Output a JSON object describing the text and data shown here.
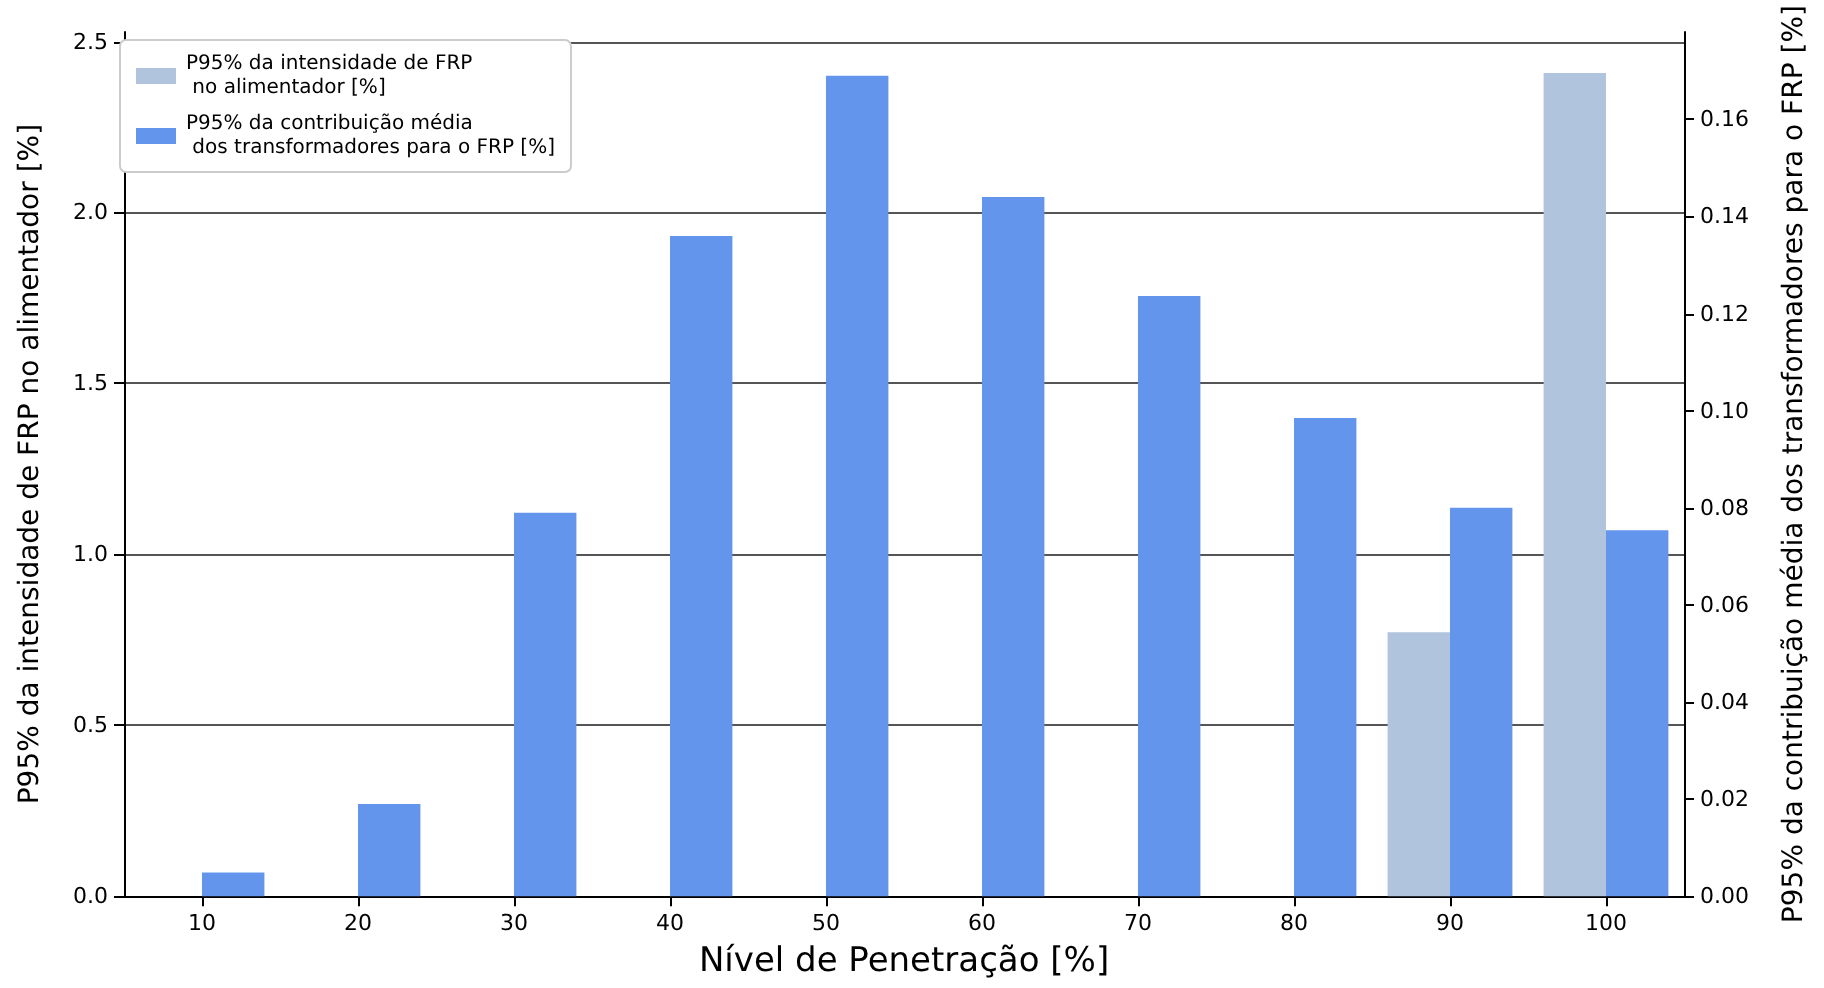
{
  "chart_data": {
    "type": "bar",
    "xlabel": "Nível de Penetração [%]",
    "ylabel": "P95% da intensidade de FRP no alimentador [%]",
    "y2label": "P95% da contribuição média dos transformadores para o FRP [%]",
    "categories": [
      "10",
      "20",
      "30",
      "40",
      "50",
      "60",
      "70",
      "80",
      "90",
      "100"
    ],
    "series": [
      {
        "name": "P95% da intensidade de FRP\n no alimentador [%]",
        "color": "#b0c4de",
        "values": [
          0,
          0,
          0,
          0,
          0,
          0,
          0,
          0,
          0.772,
          2.408
        ]
      },
      {
        "name": "P95% da contribuição média\n dos transformadores para o FRP [%]",
        "color": "#6495ed",
        "axis": "y2",
        "values": [
          0.0049,
          0.019,
          0.079,
          0.136,
          0.169,
          0.144,
          0.1236,
          0.0985,
          0.08,
          0.0754
        ]
      }
    ],
    "ylim": [
      0,
      2.528
    ],
    "yticks": [
      {
        "value": 0,
        "label": "0.0"
      },
      0.5,
      {
        "value": 1,
        "label": "1.0"
      },
      1.5,
      {
        "value": 2,
        "label": "2.0"
      },
      2.5
    ],
    "y2lim": [
      0,
      0.178
    ],
    "y2ticks": [
      {
        "value": 0,
        "label": "0.00"
      },
      0.02,
      0.04,
      0.06,
      0.08,
      {
        "value": 0.1,
        "label": "0.10"
      },
      0.12,
      0.14,
      0.16
    ],
    "grid": "y",
    "legend": "top left"
  }
}
